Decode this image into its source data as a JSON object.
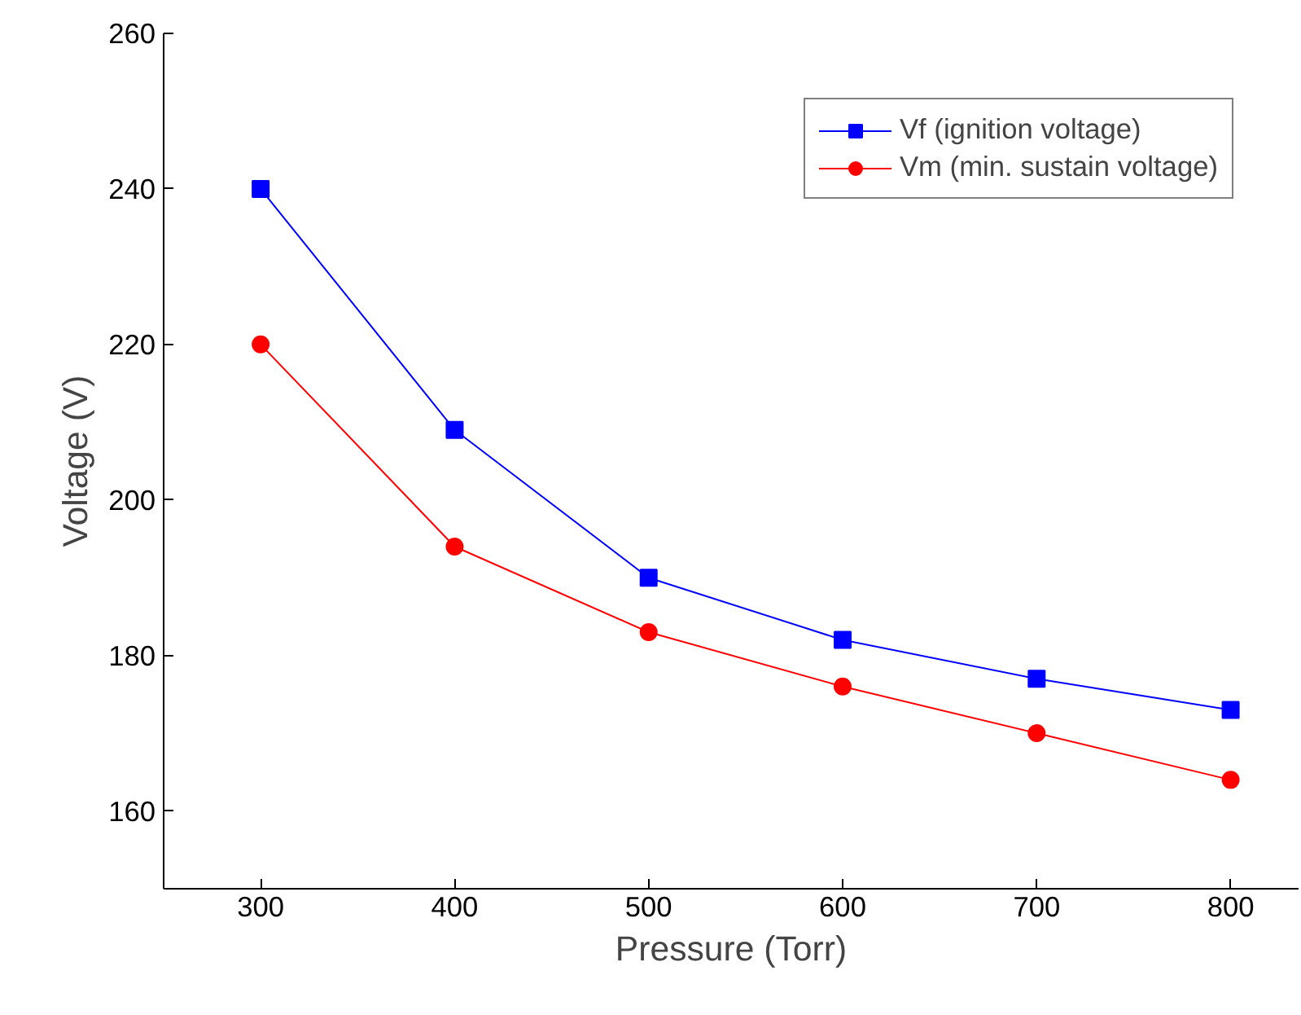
{
  "chart_data": {
    "type": "line",
    "xlabel": "Pressure (Torr)",
    "ylabel": "Voltage (V)",
    "x": [
      300,
      400,
      500,
      600,
      700,
      800
    ],
    "series": [
      {
        "name": "Vf (ignition voltage)",
        "color": "#0000ff",
        "marker": "square",
        "values": [
          240,
          209,
          190,
          182,
          177,
          173
        ]
      },
      {
        "name": "Vm (min. sustain voltage)",
        "color": "#ff0000",
        "marker": "circle",
        "values": [
          220,
          194,
          183,
          176,
          170,
          164
        ]
      }
    ],
    "xlim": [
      250,
      835
    ],
    "ylim": [
      150,
      260
    ],
    "xticks": [
      300,
      400,
      500,
      600,
      700,
      800
    ],
    "yticks": [
      160,
      180,
      200,
      220,
      240,
      260
    ],
    "grid": false,
    "legend": "top right",
    "line_style": "solid"
  }
}
